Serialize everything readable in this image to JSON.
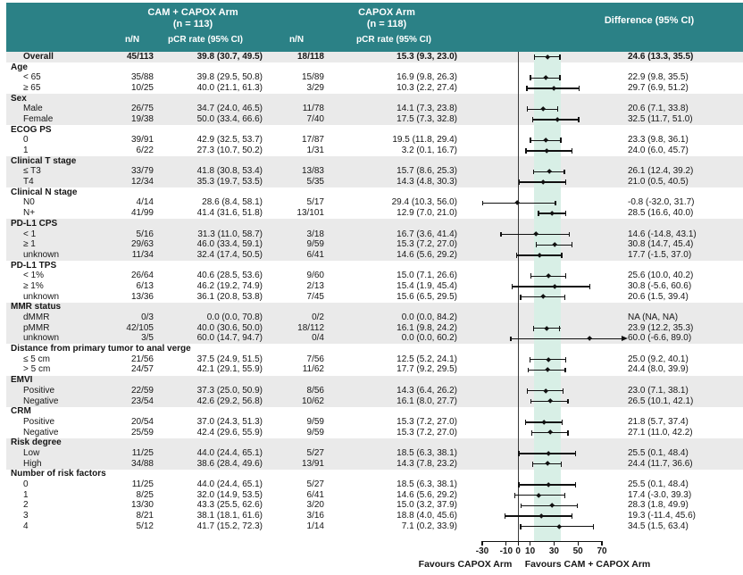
{
  "header": {
    "arm1_title": "CAM + CAPOX Arm",
    "arm1_n": "(n = 113)",
    "arm2_title": "CAPOX Arm",
    "arm2_n": "(n = 118)",
    "diff_title": "Difference (95% CI)",
    "nN_label": "n/N",
    "pcr_label": "pCR rate (95% CI)"
  },
  "colors": {
    "header_bg": "#2B8186",
    "stripe": "#EAEAEA",
    "band": "#D8EFE6",
    "zero_line": "#3A3A3A",
    "marker": "#101010",
    "header_text": "#FFFFFF"
  },
  "chart_data": {
    "type": "forest",
    "axis": {
      "min": -30,
      "max": 70,
      "ticks": [
        -30,
        -10,
        0,
        10,
        30,
        50,
        70
      ],
      "ref_line": 0,
      "shaded_band": [
        13.3,
        35.5
      ],
      "xlabel_left": "Favours CAPOX Arm",
      "xlabel_right": "Favours CAM + CAPOX Arm"
    },
    "groups": [
      {
        "label": "",
        "shade": true,
        "items": [
          {
            "label": "Overall",
            "bold": true,
            "nN1": "45/113",
            "pcr1": "39.8 (30.7, 49.5)",
            "nN2": "18/118",
            "pcr2": "15.3 (9.3, 23.0)",
            "diff": "24.6 (13.3, 35.5)",
            "est": 24.6,
            "lo": 13.3,
            "hi": 35.5
          }
        ]
      },
      {
        "label": "Age",
        "shade": false,
        "items": [
          {
            "label": "< 65",
            "nN1": "35/88",
            "pcr1": "39.8 (29.5, 50.8)",
            "nN2": "15/89",
            "pcr2": "16.9 (9.8, 26.3)",
            "diff": "22.9 (9.8, 35.5)",
            "est": 22.9,
            "lo": 9.8,
            "hi": 35.5
          },
          {
            "label": "≥ 65",
            "nN1": "10/25",
            "pcr1": "40.0 (21.1, 61.3)",
            "nN2": "3/29",
            "pcr2": "10.3 (2.2, 27.4)",
            "diff": "29.7 (6.9, 51.2)",
            "est": 29.7,
            "lo": 6.9,
            "hi": 51.2
          }
        ]
      },
      {
        "label": "Sex",
        "shade": true,
        "items": [
          {
            "label": "Male",
            "nN1": "26/75",
            "pcr1": "34.7 (24.0, 46.5)",
            "nN2": "11/78",
            "pcr2": "14.1 (7.3, 23.8)",
            "diff": "20.6 (7.1, 33.8)",
            "est": 20.6,
            "lo": 7.1,
            "hi": 33.8
          },
          {
            "label": "Female",
            "nN1": "19/38",
            "pcr1": "50.0 (33.4, 66.6)",
            "nN2": "7/40",
            "pcr2": "17.5 (7.3, 32.8)",
            "diff": "32.5 (11.7, 51.0)",
            "est": 32.5,
            "lo": 11.7,
            "hi": 51.0
          }
        ]
      },
      {
        "label": "ECOG PS",
        "shade": false,
        "items": [
          {
            "label": "0",
            "nN1": "39/91",
            "pcr1": "42.9 (32.5, 53.7)",
            "nN2": "17/87",
            "pcr2": "19.5 (11.8, 29.4)",
            "diff": "23.3 (9.8, 36.1)",
            "est": 23.3,
            "lo": 9.8,
            "hi": 36.1
          },
          {
            "label": "1",
            "nN1": "6/22",
            "pcr1": "27.3 (10.7, 50.2)",
            "nN2": "1/31",
            "pcr2": "3.2 (0.1, 16.7)",
            "diff": "24.0 (6.0, 45.7)",
            "est": 24.0,
            "lo": 6.0,
            "hi": 45.7
          }
        ]
      },
      {
        "label": "Clinical T stage",
        "shade": true,
        "items": [
          {
            "label": "≤ T3",
            "nN1": "33/79",
            "pcr1": "41.8 (30.8, 53.4)",
            "nN2": "13/83",
            "pcr2": "15.7 (8.6, 25.3)",
            "diff": "26.1 (12.4, 39.2)",
            "est": 26.1,
            "lo": 12.4,
            "hi": 39.2
          },
          {
            "label": "T4",
            "nN1": "12/34",
            "pcr1": "35.3 (19.7, 53.5)",
            "nN2": "5/35",
            "pcr2": "14.3 (4.8, 30.3)",
            "diff": "21.0 (0.5, 40.5)",
            "est": 21.0,
            "lo": 0.5,
            "hi": 40.5
          }
        ]
      },
      {
        "label": "Clinical N stage",
        "shade": false,
        "items": [
          {
            "label": "N0",
            "nN1": "4/14",
            "pcr1": "28.6 (8.4, 58.1)",
            "nN2": "5/17",
            "pcr2": "29.4 (10.3, 56.0)",
            "diff": "-0.8 (-32.0, 31.7)",
            "est": -0.8,
            "lo": -32.0,
            "hi": 31.7
          },
          {
            "label": "N+",
            "nN1": "41/99",
            "pcr1": "41.4 (31.6, 51.8)",
            "nN2": "13/101",
            "pcr2": "12.9 (7.0, 21.0)",
            "diff": "28.5 (16.6, 40.0)",
            "est": 28.5,
            "lo": 16.6,
            "hi": 40.0
          }
        ]
      },
      {
        "label": "PD-L1 CPS",
        "shade": true,
        "items": [
          {
            "label": "< 1",
            "nN1": "5/16",
            "pcr1": "31.3 (11.0, 58.7)",
            "nN2": "3/18",
            "pcr2": "16.7 (3.6, 41.4)",
            "diff": "14.6 (-14.8, 43.1)",
            "est": 14.6,
            "lo": -14.8,
            "hi": 43.1
          },
          {
            "label": "≥ 1",
            "nN1": "29/63",
            "pcr1": "46.0 (33.4, 59.1)",
            "nN2": "9/59",
            "pcr2": "15.3 (7.2, 27.0)",
            "diff": "30.8 (14.7, 45.4)",
            "est": 30.8,
            "lo": 14.7,
            "hi": 45.4
          },
          {
            "label": "unknown",
            "nN1": "11/34",
            "pcr1": "32.4 (17.4, 50.5)",
            "nN2": "6/41",
            "pcr2": "14.6 (5.6, 29.2)",
            "diff": "17.7 (-1.5, 37.0)",
            "est": 17.7,
            "lo": -1.5,
            "hi": 37.0
          }
        ]
      },
      {
        "label": "PD-L1 TPS",
        "shade": false,
        "items": [
          {
            "label": "< 1%",
            "nN1": "26/64",
            "pcr1": "40.6 (28.5, 53.6)",
            "nN2": "9/60",
            "pcr2": "15.0 (7.1, 26.6)",
            "diff": "25.6 (10.0, 40.2)",
            "est": 25.6,
            "lo": 10.0,
            "hi": 40.2
          },
          {
            "label": "≥ 1%",
            "nN1": "6/13",
            "pcr1": "46.2 (19.2, 74.9)",
            "nN2": "2/13",
            "pcr2": "15.4 (1.9, 45.4)",
            "diff": "30.8 (-5.6, 60.6)",
            "est": 30.8,
            "lo": -5.6,
            "hi": 60.6
          },
          {
            "label": "unknown",
            "nN1": "13/36",
            "pcr1": "36.1 (20.8, 53.8)",
            "nN2": "7/45",
            "pcr2": "15.6 (6.5, 29.5)",
            "diff": "20.6 (1.5, 39.4)",
            "est": 20.6,
            "lo": 1.5,
            "hi": 39.4
          }
        ]
      },
      {
        "label": "MMR status",
        "shade": true,
        "items": [
          {
            "label": "dMMR",
            "nN1": "0/3",
            "pcr1": "0.0 (0.0, 70.8)",
            "nN2": "0/2",
            "pcr2": "0.0 (0.0, 84.2)",
            "diff": "NA (NA, NA)",
            "est": null,
            "lo": null,
            "hi": null
          },
          {
            "label": "pMMR",
            "nN1": "42/105",
            "pcr1": "40.0 (30.6, 50.0)",
            "nN2": "18/112",
            "pcr2": "16.1 (9.8, 24.2)",
            "diff": "23.9 (12.2, 35.3)",
            "est": 23.9,
            "lo": 12.2,
            "hi": 35.3
          },
          {
            "label": "unknown",
            "nN1": "3/5",
            "pcr1": "60.0 (14.7, 94.7)",
            "nN2": "0/4",
            "pcr2": "0.0 (0.0, 60.2)",
            "diff": "60.0 (-6.6, 89.0)",
            "est": 60.0,
            "lo": -6.6,
            "hi": 89.0,
            "arrow_right": true
          }
        ]
      },
      {
        "label": "Distance from primary tumor to anal verge",
        "shade": false,
        "items": [
          {
            "label": "≤ 5 cm",
            "nN1": "21/56",
            "pcr1": "37.5 (24.9, 51.5)",
            "nN2": "7/56",
            "pcr2": "12.5 (5.2, 24.1)",
            "diff": "25.0 (9.2, 40.1)",
            "est": 25.0,
            "lo": 9.2,
            "hi": 40.1
          },
          {
            "label": "> 5 cm",
            "nN1": "24/57",
            "pcr1": "42.1 (29.1, 55.9)",
            "nN2": "11/62",
            "pcr2": "17.7 (9.2, 29.5)",
            "diff": "24.4 (8.0, 39.9)",
            "est": 24.4,
            "lo": 8.0,
            "hi": 39.9
          }
        ]
      },
      {
        "label": "EMVI",
        "shade": true,
        "items": [
          {
            "label": "Positive",
            "nN1": "22/59",
            "pcr1": "37.3 (25.0, 50.9)",
            "nN2": "8/56",
            "pcr2": "14.3 (6.4, 26.2)",
            "diff": "23.0 (7.1, 38.1)",
            "est": 23.0,
            "lo": 7.1,
            "hi": 38.1
          },
          {
            "label": "Negative",
            "nN1": "23/54",
            "pcr1": "42.6 (29.2, 56.8)",
            "nN2": "10/62",
            "pcr2": "16.1 (8.0, 27.7)",
            "diff": "26.5 (10.1, 42.1)",
            "est": 26.5,
            "lo": 10.1,
            "hi": 42.1
          }
        ]
      },
      {
        "label": "CRM",
        "shade": false,
        "items": [
          {
            "label": "Positive",
            "nN1": "20/54",
            "pcr1": "37.0 (24.3, 51.3)",
            "nN2": "9/59",
            "pcr2": "15.3 (7.2, 27.0)",
            "diff": "21.8 (5.7, 37.4)",
            "est": 21.8,
            "lo": 5.7,
            "hi": 37.4
          },
          {
            "label": "Negative",
            "nN1": "25/59",
            "pcr1": "42.4 (29.6, 55.9)",
            "nN2": "9/59",
            "pcr2": "15.3 (7.2, 27.0)",
            "diff": "27.1 (11.0, 42.2)",
            "est": 27.1,
            "lo": 11.0,
            "hi": 42.2
          }
        ]
      },
      {
        "label": "Risk degree",
        "shade": true,
        "items": [
          {
            "label": "Low",
            "nN1": "11/25",
            "pcr1": "44.0 (24.4, 65.1)",
            "nN2": "5/27",
            "pcr2": "18.5 (6.3, 38.1)",
            "diff": "25.5 (0.1, 48.4)",
            "est": 25.5,
            "lo": 0.1,
            "hi": 48.4
          },
          {
            "label": "High",
            "nN1": "34/88",
            "pcr1": "38.6 (28.4, 49.6)",
            "nN2": "13/91",
            "pcr2": "14.3 (7.8, 23.2)",
            "diff": "24.4 (11.7, 36.6)",
            "est": 24.4,
            "lo": 11.7,
            "hi": 36.6
          }
        ]
      },
      {
        "label": "Number of risk factors",
        "shade": false,
        "items": [
          {
            "label": "0",
            "nN1": "11/25",
            "pcr1": "44.0 (24.4, 65.1)",
            "nN2": "5/27",
            "pcr2": "18.5 (6.3, 38.1)",
            "diff": "25.5 (0.1, 48.4)",
            "est": 25.5,
            "lo": 0.1,
            "hi": 48.4
          },
          {
            "label": "1",
            "nN1": "8/25",
            "pcr1": "32.0 (14.9, 53.5)",
            "nN2": "6/41",
            "pcr2": "14.6 (5.6, 29.2)",
            "diff": "17.4 (-3.0, 39.3)",
            "est": 17.4,
            "lo": -3.0,
            "hi": 39.3
          },
          {
            "label": "2",
            "nN1": "13/30",
            "pcr1": "43.3 (25.5, 62.6)",
            "nN2": "3/20",
            "pcr2": "15.0 (3.2, 37.9)",
            "diff": "28.3 (1.8, 49.9)",
            "est": 28.3,
            "lo": 1.8,
            "hi": 49.9
          },
          {
            "label": "3",
            "nN1": "8/21",
            "pcr1": "38.1 (18.1, 61.6)",
            "nN2": "3/16",
            "pcr2": "18.8 (4.0, 45.6)",
            "diff": "19.3 (-11.4, 45.6)",
            "est": 19.3,
            "lo": -11.4,
            "hi": 45.6
          },
          {
            "label": "4",
            "nN1": "5/12",
            "pcr1": "41.7 (15.2, 72.3)",
            "nN2": "1/14",
            "pcr2": "7.1 (0.2, 33.9)",
            "diff": "34.5 (1.5, 63.4)",
            "est": 34.5,
            "lo": 1.5,
            "hi": 63.4
          }
        ]
      }
    ]
  }
}
